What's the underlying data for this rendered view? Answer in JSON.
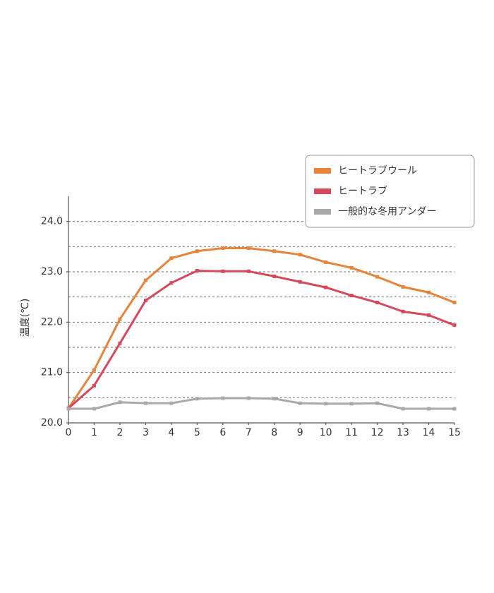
{
  "chart_data": {
    "type": "line",
    "y_label": "温度(℃)",
    "x": [
      0,
      1,
      2,
      3,
      4,
      5,
      6,
      7,
      8,
      9,
      10,
      11,
      12,
      13,
      14,
      15
    ],
    "xlim": [
      0,
      15
    ],
    "xticks": [
      0,
      1,
      2,
      3,
      4,
      5,
      6,
      7,
      8,
      9,
      10,
      11,
      12,
      13,
      14,
      15
    ],
    "ylim": [
      20,
      24.5
    ],
    "yticks": [
      {
        "value": 20,
        "label": "20.0"
      },
      {
        "value": 21,
        "label": "21.0"
      },
      {
        "value": 22,
        "label": "22.0"
      },
      {
        "value": 23,
        "label": "23.0"
      },
      {
        "value": 24,
        "label": "24.0"
      }
    ],
    "ygrid": [
      20.5,
      21,
      21.5,
      22,
      22.5,
      23,
      23.5,
      24
    ],
    "legend": "top-right",
    "series": [
      {
        "name": "ヒートラブウール",
        "color": "#e8833a",
        "values": [
          20.29,
          21.05,
          22.06,
          22.83,
          23.27,
          23.41,
          23.47,
          23.47,
          23.41,
          23.34,
          23.19,
          23.08,
          22.9,
          22.7,
          22.59,
          22.39
        ]
      },
      {
        "name": "ヒートラブ",
        "color": "#d6495a",
        "values": [
          20.29,
          20.74,
          21.58,
          22.43,
          22.78,
          23.02,
          23.01,
          23.01,
          22.91,
          22.8,
          22.69,
          22.53,
          22.39,
          22.21,
          22.14,
          21.94
        ]
      },
      {
        "name": "一般的な冬用アンダー",
        "color": "#a9a9a9",
        "values": [
          20.28,
          20.28,
          20.41,
          20.39,
          20.39,
          20.48,
          20.49,
          20.49,
          20.48,
          20.39,
          20.38,
          20.38,
          20.39,
          20.28,
          20.28,
          20.28
        ]
      }
    ]
  }
}
